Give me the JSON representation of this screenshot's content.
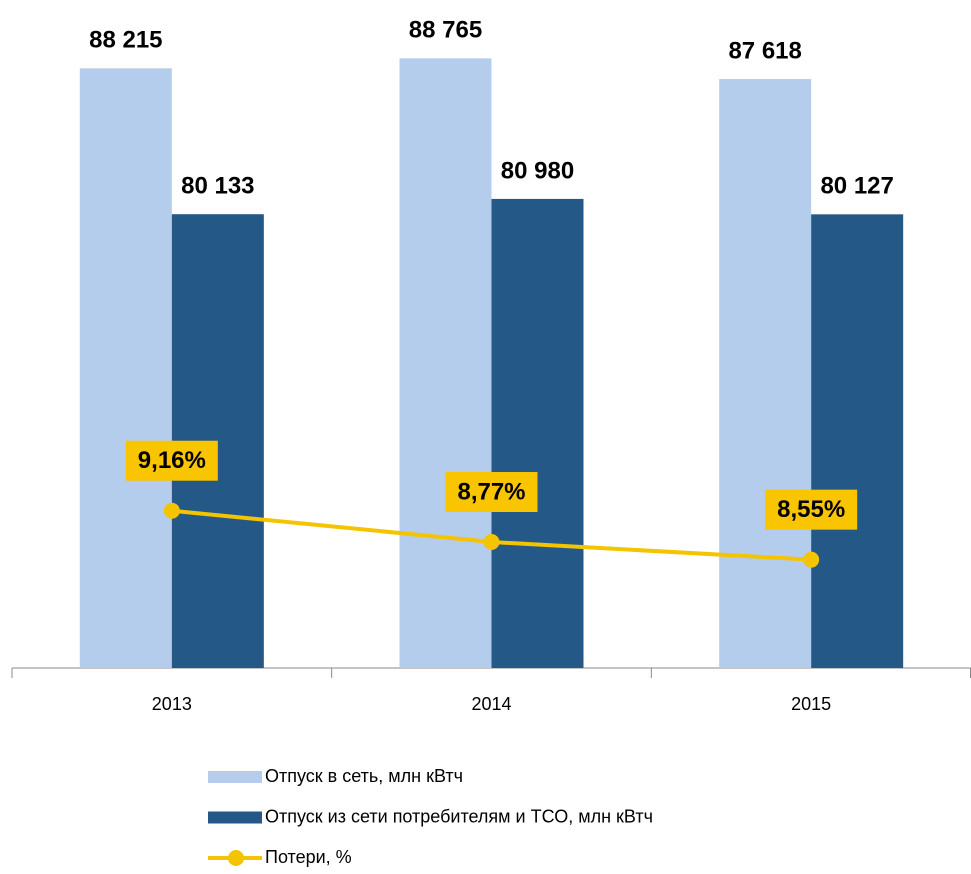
{
  "chart_data": {
    "type": "bar",
    "categories": [
      "2013",
      "2014",
      "2015"
    ],
    "series": [
      {
        "name": "Отпуск в сеть, млн кВтч",
        "color": "#b4cdec",
        "values": [
          88215,
          88765,
          87618
        ],
        "value_labels": [
          "88 215",
          "88 765",
          "87 618"
        ]
      },
      {
        "name": "Отпуск из сети потребителям и ТСО, млн кВтч",
        "color": "#245886",
        "values": [
          80133,
          80980,
          80127
        ],
        "value_labels": [
          "80 133",
          "80 980",
          "80 127"
        ]
      },
      {
        "name": "Потери, %",
        "color": "#f5c400",
        "type": "line",
        "axis": "y2",
        "values": [
          9.16,
          8.77,
          8.55
        ],
        "value_labels": [
          "9,16%",
          "8,77%",
          "8,55%"
        ]
      }
    ],
    "ylim": [
      55000,
      91000
    ],
    "y2lim": [
      7.2,
      15.3
    ],
    "legend": "bottom"
  }
}
